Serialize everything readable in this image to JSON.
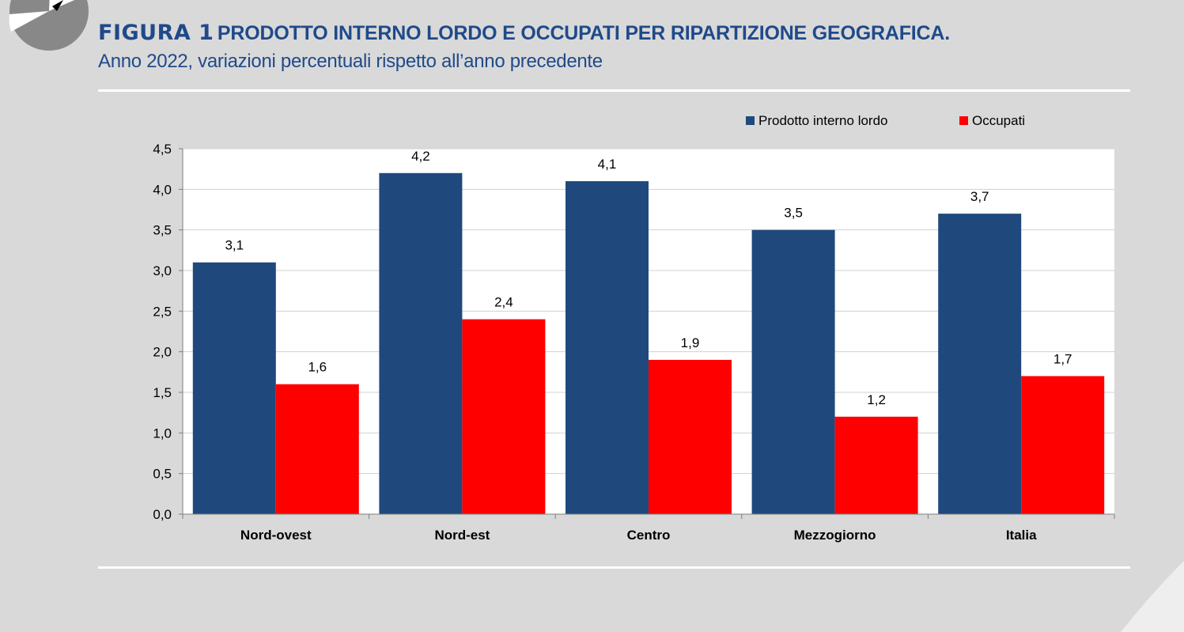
{
  "header": {
    "figure_label": "FIGURA 1",
    "title": "PRODOTTO INTERNO LORDO E OCCUPATI PER RIPARTIZIONE GEOGRAFICA.",
    "subtitle": "Anno 2022, variazioni percentuali rispetto all’anno precedente"
  },
  "chart_data": {
    "type": "bar",
    "categories": [
      "Nord-ovest",
      "Nord-est",
      "Centro",
      "Mezzogiorno",
      "Italia"
    ],
    "series": [
      {
        "name": "Prodotto interno lordo",
        "color": "#1f497d",
        "values": [
          3.1,
          4.2,
          4.1,
          3.5,
          3.7
        ]
      },
      {
        "name": "Occupati",
        "color": "#ff0000",
        "values": [
          1.6,
          2.4,
          1.9,
          1.2,
          1.7
        ]
      }
    ],
    "data_labels": [
      [
        "3,1",
        "4,2",
        "4,1",
        "3,5",
        "3,7"
      ],
      [
        "1,6",
        "2,4",
        "1,9",
        "1,2",
        "1,7"
      ]
    ],
    "yticks": [
      0,
      0.5,
      1,
      1.5,
      2,
      2.5,
      3,
      3.5,
      4,
      4.5
    ],
    "ytick_labels": [
      "0,0",
      "0,5",
      "1,0",
      "1,5",
      "2,0",
      "2,5",
      "3,0",
      "3,5",
      "4,0",
      "4,5"
    ],
    "ylim": [
      0,
      4.5
    ],
    "grid": true,
    "legend": "top-right"
  }
}
